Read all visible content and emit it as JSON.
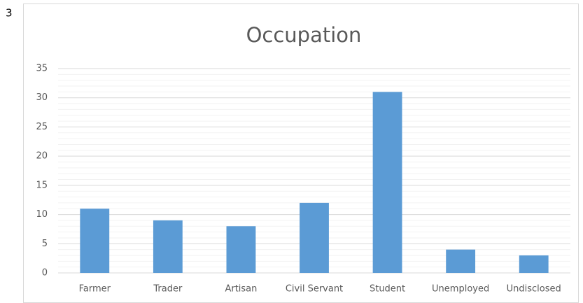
{
  "page_label": "3",
  "chart_data": {
    "type": "bar",
    "title": "Occupation",
    "categories": [
      "Farmer",
      "Trader",
      "Artisan",
      "Civil Servant",
      "Student",
      "Unemployed",
      "Undisclosed"
    ],
    "values": [
      11,
      9,
      8,
      12,
      31,
      4,
      3
    ],
    "color": "#5b9bd5",
    "ylim": [
      0,
      35
    ],
    "yticks": [
      0,
      5,
      10,
      15,
      20,
      25,
      30,
      35
    ],
    "grid": true,
    "minor_grid": true
  }
}
